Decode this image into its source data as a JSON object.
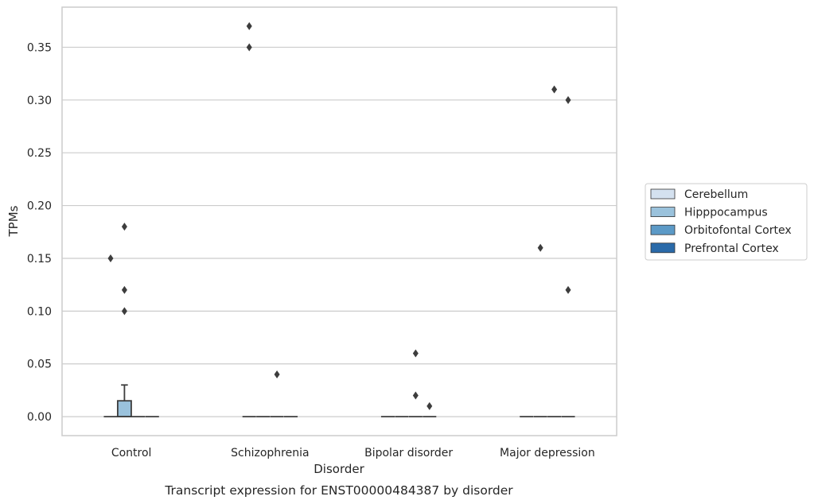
{
  "chart_data": {
    "type": "box",
    "caption": "Transcript expression for ENST00000484387 by disorder",
    "xlabel": "Disorder",
    "ylabel": "TPMs",
    "categories": [
      "Control",
      "Schizophrenia",
      "Bipolar disorder",
      "Major depression"
    ],
    "ylim": [
      -0.018,
      0.388
    ],
    "yticks": [
      0.0,
      0.05,
      0.1,
      0.15,
      0.2,
      0.25,
      0.3,
      0.35
    ],
    "ytick_labels": [
      "0.00",
      "0.05",
      "0.10",
      "0.15",
      "0.20",
      "0.25",
      "0.30",
      "0.35"
    ],
    "grid": "horizontal",
    "legend_position": "right",
    "series": [
      {
        "name": "Cerebellum",
        "color": "#d4e1ef",
        "boxes": [
          {
            "q1": 0.0,
            "median": 0.0,
            "q3": 0.0,
            "whisker_low": 0.0,
            "whisker_high": 0.0,
            "outliers": [
              0.15
            ]
          },
          {
            "q1": 0.0,
            "median": 0.0,
            "q3": 0.0,
            "whisker_low": 0.0,
            "whisker_high": 0.0,
            "outliers": [
              0.37,
              0.35
            ]
          },
          {
            "q1": 0.0,
            "median": 0.0,
            "q3": 0.0,
            "whisker_low": 0.0,
            "whisker_high": 0.0,
            "outliers": []
          },
          {
            "q1": 0.0,
            "median": 0.0,
            "q3": 0.0,
            "whisker_low": 0.0,
            "whisker_high": 0.0,
            "outliers": []
          }
        ]
      },
      {
        "name": "Hipppocampus",
        "color": "#9ac2dc",
        "boxes": [
          {
            "q1": 0.0,
            "median": 0.0,
            "q3": 0.015,
            "whisker_low": 0.0,
            "whisker_high": 0.03,
            "outliers": [
              0.18,
              0.12,
              0.1
            ]
          },
          {
            "q1": 0.0,
            "median": 0.0,
            "q3": 0.0,
            "whisker_low": 0.0,
            "whisker_high": 0.0,
            "outliers": []
          },
          {
            "q1": 0.0,
            "median": 0.0,
            "q3": 0.0,
            "whisker_low": 0.0,
            "whisker_high": 0.0,
            "outliers": []
          },
          {
            "q1": 0.0,
            "median": 0.0,
            "q3": 0.0,
            "whisker_low": 0.0,
            "whisker_high": 0.0,
            "outliers": [
              0.16
            ]
          }
        ]
      },
      {
        "name": "Orbitofontal Cortex",
        "color": "#5c9ac7",
        "boxes": [
          {
            "q1": 0.0,
            "median": 0.0,
            "q3": 0.0,
            "whisker_low": 0.0,
            "whisker_high": 0.0,
            "outliers": []
          },
          {
            "q1": 0.0,
            "median": 0.0,
            "q3": 0.0,
            "whisker_low": 0.0,
            "whisker_high": 0.0,
            "outliers": [
              0.04
            ]
          },
          {
            "q1": 0.0,
            "median": 0.0,
            "q3": 0.0,
            "whisker_low": 0.0,
            "whisker_high": 0.0,
            "outliers": [
              0.06,
              0.02
            ]
          },
          {
            "q1": 0.0,
            "median": 0.0,
            "q3": 0.0,
            "whisker_low": 0.0,
            "whisker_high": 0.0,
            "outliers": [
              0.31
            ]
          }
        ]
      },
      {
        "name": "Prefrontal Cortex",
        "color": "#2a6aa9",
        "boxes": [
          {
            "q1": 0.0,
            "median": 0.0,
            "q3": 0.0,
            "whisker_low": 0.0,
            "whisker_high": 0.0,
            "outliers": []
          },
          {
            "q1": 0.0,
            "median": 0.0,
            "q3": 0.0,
            "whisker_low": 0.0,
            "whisker_high": 0.0,
            "outliers": []
          },
          {
            "q1": 0.0,
            "median": 0.0,
            "q3": 0.0,
            "whisker_low": 0.0,
            "whisker_high": 0.0,
            "outliers": [
              0.01
            ]
          },
          {
            "q1": 0.0,
            "median": 0.0,
            "q3": 0.0,
            "whisker_low": 0.0,
            "whisker_high": 0.0,
            "outliers": [
              0.3,
              0.12
            ]
          }
        ]
      }
    ]
  },
  "colors": {
    "grid": "#cccccc",
    "frame": "#cccccc",
    "box_edge": "#3d3d3d",
    "outlier": "#3d3d3d"
  }
}
